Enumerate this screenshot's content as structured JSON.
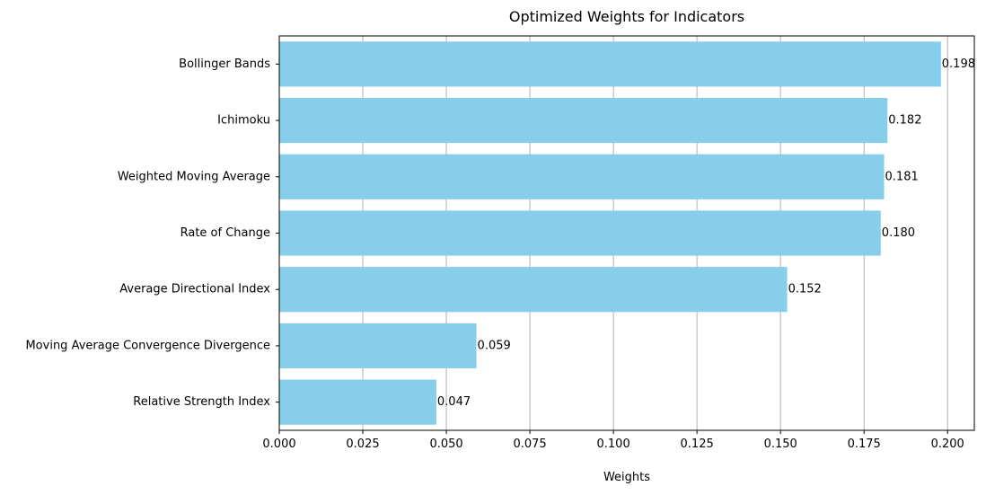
{
  "chart_data": {
    "type": "bar",
    "orientation": "horizontal",
    "title": "Optimized Weights for Indicators",
    "xlabel": "Weights",
    "ylabel": "",
    "categories": [
      "Bollinger Bands",
      "Ichimoku",
      "Weighted Moving Average",
      "Rate of Change",
      "Average Directional Index",
      "Moving Average Convergence Divergence",
      "Relative Strength Index"
    ],
    "values": [
      0.198,
      0.182,
      0.181,
      0.18,
      0.152,
      0.059,
      0.047
    ],
    "value_labels": [
      "0.198",
      "0.182",
      "0.181",
      "0.180",
      "0.152",
      "0.059",
      "0.047"
    ],
    "xlim": [
      0,
      0.208
    ],
    "xticks": [
      0.0,
      0.025,
      0.05,
      0.075,
      0.1,
      0.125,
      0.15,
      0.175,
      0.2
    ],
    "xtick_labels": [
      "0.000",
      "0.025",
      "0.050",
      "0.075",
      "0.100",
      "0.125",
      "0.150",
      "0.175",
      "0.200"
    ],
    "grid": "x",
    "legend": "none",
    "bar_color": "#87CEEB",
    "grid_color": "#b0b0b0",
    "axis_color": "#000000"
  }
}
